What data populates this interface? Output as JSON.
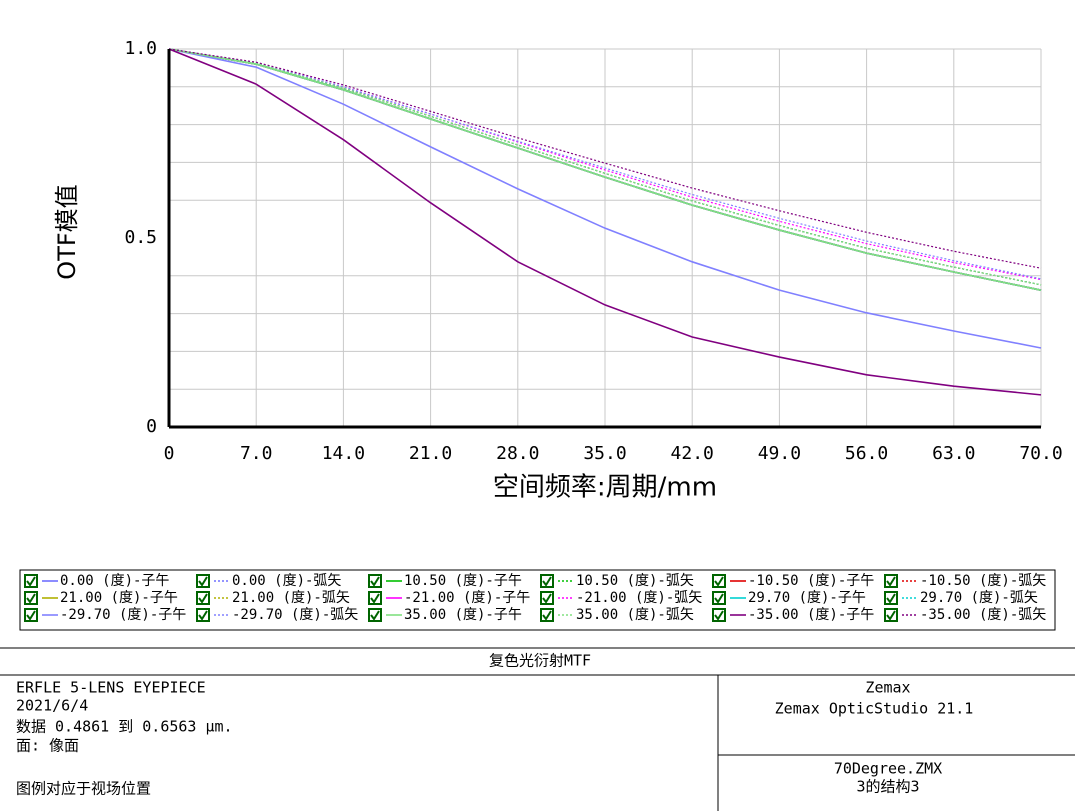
{
  "chart_data": {
    "type": "line",
    "xlabel": "空间频率:周期/mm",
    "ylabel": "OTF模值",
    "x": [
      0,
      7,
      14,
      21,
      28,
      35,
      42,
      49,
      56,
      63,
      70
    ],
    "xlim": [
      0,
      70
    ],
    "ylim": [
      0,
      1
    ],
    "xticks": [
      0,
      {
        "value": 7,
        "label": "7.0"
      },
      {
        "value": 14,
        "label": "14.0"
      },
      {
        "value": 21,
        "label": "21.0"
      },
      {
        "value": 28,
        "label": "28.0"
      },
      {
        "value": 35,
        "label": "35.0"
      },
      {
        "value": 42,
        "label": "42.0"
      },
      {
        "value": 49,
        "label": "49.0"
      },
      {
        "value": 56,
        "label": "56.0"
      },
      {
        "value": 63,
        "label": "63.0"
      },
      {
        "value": 70,
        "label": "70.0"
      }
    ],
    "yticks": [
      0,
      0.5,
      {
        "value": 1,
        "label": "1.0"
      }
    ],
    "y_gridlines": [
      0.1,
      0.2,
      0.3,
      0.4,
      0.6,
      0.7,
      0.8,
      0.9,
      1
    ],
    "grid": true,
    "series": [
      {
        "name": "0.00 (度)-子午",
        "color": "#7070ff",
        "dash": false,
        "values": [
          1,
          0.96,
          0.892,
          0.815,
          0.738,
          0.661,
          0.587,
          0.521,
          0.46,
          0.41,
          0.362
        ]
      },
      {
        "name": "0.00 (度)-弧矢",
        "color": "#7070ff",
        "dash": true,
        "values": [
          1,
          0.96,
          0.892,
          0.815,
          0.738,
          0.661,
          0.587,
          0.521,
          0.46,
          0.41,
          0.362
        ]
      },
      {
        "name": "10.50 (度)-子午",
        "color": "#00c000",
        "dash": false,
        "values": [
          1,
          0.96,
          0.892,
          0.815,
          0.738,
          0.661,
          0.587,
          0.521,
          0.46,
          0.41,
          0.362
        ]
      },
      {
        "name": "10.50 (度)-弧矢",
        "color": "#00c000",
        "dash": true,
        "values": [
          1,
          0.962,
          0.897,
          0.822,
          0.746,
          0.671,
          0.598,
          0.533,
          0.473,
          0.423,
          0.376
        ]
      },
      {
        "name": "-10.50 (度)-子午",
        "color": "#e00000",
        "dash": false,
        "values": [
          1,
          0.96,
          0.892,
          0.815,
          0.738,
          0.661,
          0.587,
          0.521,
          0.46,
          0.41,
          0.362
        ]
      },
      {
        "name": "-10.50 (度)-弧矢",
        "color": "#e00000",
        "dash": true,
        "values": [
          1,
          0.962,
          0.897,
          0.822,
          0.746,
          0.671,
          0.598,
          0.533,
          0.473,
          0.423,
          0.376
        ]
      },
      {
        "name": "21.00 (度)-子午",
        "color": "#b0b000",
        "dash": false,
        "values": [
          1,
          0.96,
          0.892,
          0.815,
          0.738,
          0.661,
          0.587,
          0.521,
          0.46,
          0.41,
          0.362
        ]
      },
      {
        "name": "21.00 (度)-弧矢",
        "color": "#b0b000",
        "dash": true,
        "values": [
          1,
          0.962,
          0.897,
          0.822,
          0.746,
          0.671,
          0.598,
          0.533,
          0.473,
          0.423,
          0.376
        ]
      },
      {
        "name": "-21.00 (度)-子午",
        "color": "#ff00ff",
        "dash": false,
        "values": [
          1,
          0.96,
          0.892,
          0.815,
          0.738,
          0.661,
          0.587,
          0.521,
          0.46,
          0.41,
          0.362
        ]
      },
      {
        "name": "-21.00 (度)-弧矢",
        "color": "#ff00ff",
        "dash": true,
        "values": [
          1,
          0.963,
          0.9,
          0.828,
          0.754,
          0.68,
          0.608,
          0.544,
          0.485,
          0.435,
          0.39
        ]
      },
      {
        "name": "29.70 (度)-子午",
        "color": "#00d0d0",
        "dash": false,
        "values": [
          1,
          0.96,
          0.892,
          0.815,
          0.738,
          0.661,
          0.587,
          0.521,
          0.46,
          0.41,
          0.362
        ]
      },
      {
        "name": "29.70 (度)-弧矢",
        "color": "#00d0d0",
        "dash": true,
        "values": [
          1,
          0.962,
          0.897,
          0.822,
          0.746,
          0.671,
          0.598,
          0.533,
          0.473,
          0.423,
          0.376
        ]
      },
      {
        "name": "-29.70 (度)-子午",
        "color": "#8080ff",
        "dash": false,
        "values": [
          1,
          0.952,
          0.854,
          0.741,
          0.63,
          0.526,
          0.437,
          0.362,
          0.302,
          0.254,
          0.209
        ]
      },
      {
        "name": "-29.70 (度)-弧矢",
        "color": "#8080ff",
        "dash": true,
        "values": [
          1,
          0.963,
          0.9,
          0.828,
          0.756,
          0.685,
          0.615,
          0.552,
          0.492,
          0.44,
          0.392
        ]
      },
      {
        "name": "35.00 (度)-子午",
        "color": "#80e080",
        "dash": false,
        "values": [
          1,
          0.96,
          0.892,
          0.815,
          0.738,
          0.661,
          0.587,
          0.521,
          0.46,
          0.41,
          0.362
        ]
      },
      {
        "name": "35.00 (度)-弧矢",
        "color": "#80e080",
        "dash": true,
        "values": [
          1,
          0.962,
          0.897,
          0.822,
          0.746,
          0.671,
          0.598,
          0.533,
          0.473,
          0.423,
          0.376
        ]
      },
      {
        "name": "-35.00 (度)-子午",
        "color": "#800080",
        "dash": false,
        "values": [
          1,
          0.907,
          0.76,
          0.593,
          0.437,
          0.323,
          0.238,
          0.185,
          0.138,
          0.108,
          0.085
        ]
      },
      {
        "name": "-35.00 (度)-弧矢",
        "color": "#800080",
        "dash": true,
        "values": [
          1,
          0.965,
          0.905,
          0.835,
          0.765,
          0.698,
          0.632,
          0.572,
          0.515,
          0.465,
          0.42
        ]
      }
    ]
  },
  "info": {
    "title": "复色光衍射MTF",
    "lines": [
      "ERFLE 5-LENS EYEPIECE",
      "2021/6/4",
      "数据 0.4861 到 0.6563 µm.",
      "面: 像面",
      "图例对应于视场位置"
    ],
    "company": "Zemax",
    "product": "Zemax OpticStudio 21.1",
    "file": "70Degree.ZMX",
    "config": "3的结构3"
  }
}
